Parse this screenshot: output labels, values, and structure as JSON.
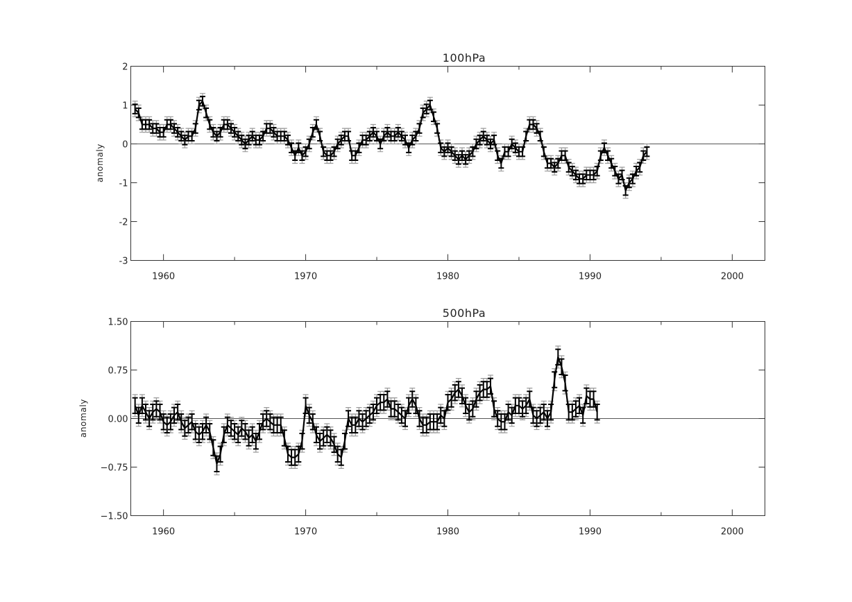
{
  "chart_data": [
    {
      "type": "line",
      "title": "100hPa",
      "ylabel": "anomaly",
      "xlim": [
        1957.7,
        2002.3
      ],
      "ylim": [
        -3,
        2
      ],
      "x_ticks": [
        1960,
        1970,
        1980,
        1990,
        2000
      ],
      "x_tick_labels": [
        "1960",
        "1970",
        "1980",
        "1990",
        "2000"
      ],
      "y_ticks": [
        -3,
        -2,
        -1,
        0,
        1,
        2
      ],
      "y_tick_labels": [
        "-3",
        "-2",
        "-1",
        "0",
        "1",
        "2"
      ],
      "zero_line": true,
      "error_bars": {
        "style": "two-level",
        "grey_halfwidth": 0.2,
        "black_halfwidth": 0.12
      },
      "series": [
        {
          "x_start": 1958.0,
          "x_step": 0.25,
          "values": [
            0.9,
            0.8,
            0.5,
            0.5,
            0.5,
            0.4,
            0.4,
            0.3,
            0.3,
            0.5,
            0.5,
            0.4,
            0.3,
            0.2,
            0.1,
            0.2,
            0.2,
            0.4,
            1.0,
            1.1,
            0.8,
            0.5,
            0.3,
            0.2,
            0.3,
            0.5,
            0.5,
            0.4,
            0.3,
            0.2,
            0.1,
            0.0,
            0.1,
            0.2,
            0.1,
            0.1,
            0.2,
            0.4,
            0.4,
            0.3,
            0.2,
            0.2,
            0.2,
            0.1,
            -0.1,
            -0.3,
            -0.1,
            -0.3,
            -0.2,
            0.0,
            0.3,
            0.5,
            0.2,
            -0.2,
            -0.3,
            -0.3,
            -0.2,
            0.0,
            0.1,
            0.2,
            0.2,
            -0.3,
            -0.3,
            -0.1,
            0.1,
            0.1,
            0.2,
            0.3,
            0.2,
            0.0,
            0.2,
            0.3,
            0.2,
            0.2,
            0.3,
            0.2,
            0.1,
            -0.1,
            0.1,
            0.2,
            0.4,
            0.8,
            0.9,
            1.0,
            0.7,
            0.4,
            -0.1,
            -0.2,
            -0.1,
            -0.2,
            -0.3,
            -0.4,
            -0.3,
            -0.4,
            -0.3,
            -0.2,
            0.0,
            0.1,
            0.2,
            0.1,
            0.0,
            0.1,
            -0.3,
            -0.5,
            -0.2,
            -0.2,
            0.0,
            -0.1,
            -0.2,
            -0.2,
            0.2,
            0.5,
            0.5,
            0.4,
            0.2,
            -0.2,
            -0.5,
            -0.5,
            -0.6,
            -0.5,
            -0.3,
            -0.3,
            -0.6,
            -0.7,
            -0.8,
            -0.9,
            -0.9,
            -0.8,
            -0.8,
            -0.8,
            -0.7,
            -0.3,
            -0.1,
            -0.3,
            -0.5,
            -0.7,
            -0.9,
            -0.8,
            -1.2,
            -1.0,
            -0.9,
            -0.7,
            -0.6,
            -0.3,
            -0.2
          ]
        }
      ]
    },
    {
      "type": "line",
      "title": "500hPa",
      "ylabel": "anomaly",
      "xlim": [
        1957.7,
        2002.3
      ],
      "ylim": [
        -1.5,
        1.5
      ],
      "x_ticks": [
        1960,
        1970,
        1980,
        1990,
        2000
      ],
      "x_tick_labels": [
        "1960",
        "1970",
        "1980",
        "1990",
        "2000"
      ],
      "y_ticks": [
        -1.5,
        -0.75,
        0,
        0.75,
        1.5
      ],
      "y_tick_labels": [
        "−1.50",
        "−0.75",
        "0.00",
        "0.75",
        "1.50"
      ],
      "zero_line": true,
      "error_bars": {
        "style": "two-level",
        "grey_halfwidth": 0.17,
        "black_halfwidth": 0.12
      },
      "series": [
        {
          "x_start": 1958.0,
          "x_step": 0.25,
          "values": [
            0.2,
            0.05,
            0.2,
            0.1,
            0.0,
            0.1,
            0.15,
            0.1,
            -0.05,
            -0.1,
            -0.05,
            0.05,
            0.1,
            -0.05,
            -0.15,
            -0.1,
            -0.05,
            -0.2,
            -0.25,
            -0.2,
            -0.1,
            -0.2,
            -0.45,
            -0.7,
            -0.55,
            -0.25,
            -0.1,
            -0.15,
            -0.2,
            -0.25,
            -0.15,
            -0.2,
            -0.3,
            -0.25,
            -0.35,
            -0.2,
            -0.05,
            0.0,
            -0.05,
            -0.1,
            -0.1,
            -0.1,
            -0.3,
            -0.55,
            -0.6,
            -0.6,
            -0.55,
            -0.35,
            0.2,
            0.05,
            -0.05,
            -0.25,
            -0.35,
            -0.3,
            -0.25,
            -0.3,
            -0.4,
            -0.55,
            -0.6,
            -0.35,
            0.0,
            -0.1,
            -0.1,
            0.0,
            -0.05,
            0.0,
            0.05,
            0.1,
            0.2,
            0.25,
            0.25,
            0.3,
            0.15,
            0.15,
            0.1,
            0.05,
            0.0,
            0.2,
            0.3,
            0.2,
            0.0,
            -0.1,
            -0.1,
            -0.05,
            -0.05,
            -0.05,
            0.05,
            0.0,
            0.25,
            0.3,
            0.4,
            0.45,
            0.35,
            0.2,
            0.1,
            0.15,
            0.3,
            0.4,
            0.45,
            0.45,
            0.5,
            0.15,
            0.0,
            -0.05,
            -0.05,
            0.1,
            0.05,
            0.2,
            0.2,
            0.15,
            0.2,
            0.3,
            0.05,
            0.0,
            0.05,
            0.1,
            0.0,
            0.1,
            0.6,
            0.95,
            0.8,
            0.55,
            0.1,
            0.1,
            0.15,
            0.2,
            0.05,
            0.35,
            0.3,
            0.3,
            0.1
          ]
        }
      ]
    }
  ]
}
